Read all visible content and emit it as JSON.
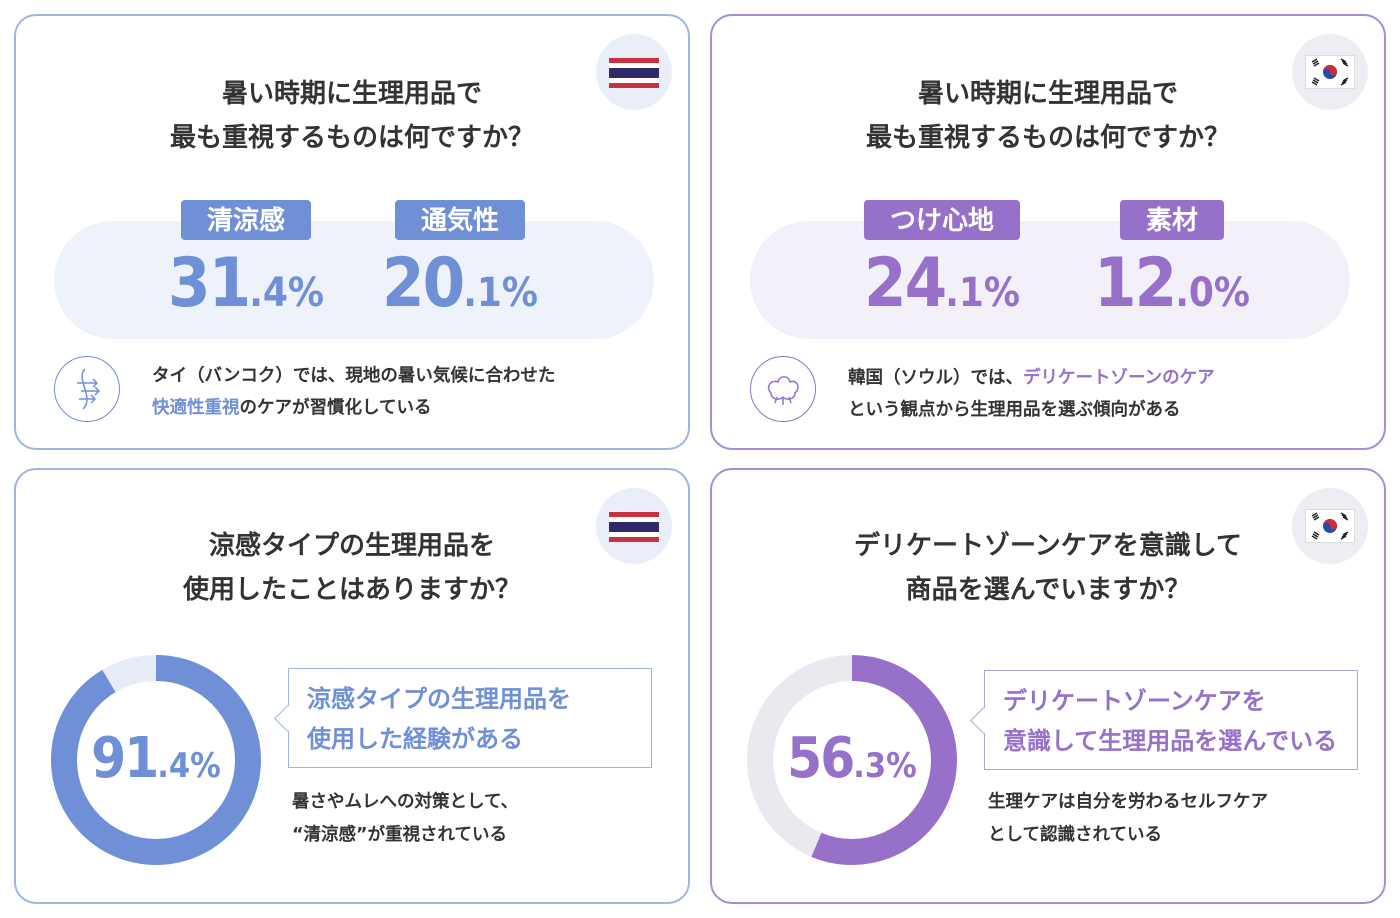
{
  "colors": {
    "thailand_accent": "#6f8fd6",
    "korea_accent": "#9670c9"
  },
  "cards": {
    "thai_priority": {
      "flag_icon": "thailand-flag-icon",
      "question_lines": [
        "暑い時期に生理用品で",
        "最も重視するものは何ですか？"
      ],
      "stats": [
        {
          "label": "清涼感",
          "int": "31",
          "dec": ".4%"
        },
        {
          "label": "通気性",
          "int": "20",
          "dec": ".1%"
        }
      ],
      "note_icon": "airflow-arrows-icon",
      "note": {
        "line1": "タイ（バンコク）では、現地の暑い気候に合わせた",
        "line2_highlight": "快適性重視",
        "line2_rest": "のケアが習慣化している"
      }
    },
    "korea_priority": {
      "flag_icon": "korea-flag-icon",
      "question_lines": [
        "暑い時期に生理用品で",
        "最も重視するものは何ですか？"
      ],
      "stats": [
        {
          "label": "つけ心地",
          "int": "24",
          "dec": ".1%"
        },
        {
          "label": "素材",
          "int": "12",
          "dec": ".0%"
        }
      ],
      "note_icon": "cotton-flower-icon",
      "note": {
        "line1_pre": "韓国（ソウル）では、",
        "line1_highlight": "デリケートゾーンのケア",
        "line2": "という観点から生理用品を選ぶ傾向がある"
      }
    },
    "thai_cooling": {
      "flag_icon": "thailand-flag-icon",
      "question_lines": [
        "涼感タイプの生理用品を",
        "使用したことはありますか？"
      ],
      "donut_int": "91",
      "donut_dec": ".4%",
      "callout_lines": [
        "涼感タイプの生理用品を",
        "使用した経験がある"
      ],
      "sub_lines": [
        "暑さやムレへの対策として、",
        "“清涼感”が重視されている"
      ]
    },
    "korea_delicate": {
      "flag_icon": "korea-flag-icon",
      "question_lines": [
        "デリケートゾーンケアを意識して",
        "商品を選んでいますか？"
      ],
      "donut_int": "56",
      "donut_dec": ".3%",
      "callout_lines": [
        "デリケートゾーンケアを",
        "意識して生理用品を選んでいる"
      ],
      "sub_lines": [
        "生理ケアは自分を労わるセルフケア",
        "として認識されている"
      ]
    }
  },
  "chart_data": [
    {
      "type": "bar",
      "title": "暑い時期に生理用品で最も重視するものは何ですか？",
      "region": "Thailand",
      "categories": [
        "清涼感",
        "通気性"
      ],
      "values": [
        31.4,
        20.1
      ],
      "unit": "%"
    },
    {
      "type": "bar",
      "title": "暑い時期に生理用品で最も重視するものは何ですか？",
      "region": "Korea",
      "categories": [
        "つけ心地",
        "素材"
      ],
      "values": [
        24.1,
        12.0
      ],
      "unit": "%"
    },
    {
      "type": "pie",
      "title": "涼感タイプの生理用品を使用したことはありますか？",
      "region": "Thailand",
      "categories": [
        "涼感タイプの生理用品を使用した経験がある",
        ""
      ],
      "values": [
        91.4,
        8.6
      ],
      "unit": "%"
    },
    {
      "type": "pie",
      "title": "デリケートゾーンケアを意識して商品を選んでいますか？",
      "region": "Korea",
      "categories": [
        "デリケートゾーンケアを意識して生理用品を選んでいる",
        ""
      ],
      "values": [
        56.3,
        43.7
      ],
      "unit": "%"
    }
  ]
}
